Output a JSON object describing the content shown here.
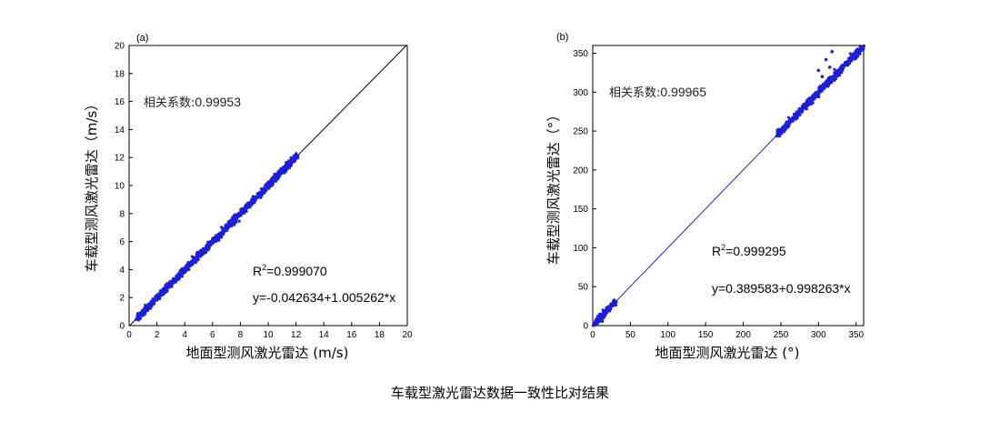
{
  "caption": "车载型激光雷达数据一致性比对结果",
  "chart_data": [
    {
      "type": "scatter",
      "panel_label": "(a)",
      "xlabel": "地面型测风激光雷达 (m/s)",
      "ylabel": "车载型测风激光雷达（m/s）",
      "xlim": [
        0,
        20
      ],
      "ylim": [
        0,
        20
      ],
      "xticks": [
        "0",
        "2",
        "4",
        "6",
        "8",
        "10",
        "12",
        "14",
        "16",
        "18",
        "20"
      ],
      "yticks": [
        "0",
        "2",
        "4",
        "6",
        "8",
        "10",
        "12",
        "14",
        "16",
        "18",
        "20"
      ],
      "correlation_label": "相关系数:",
      "correlation_value": "0.99953",
      "r2_prefix": "R",
      "r2_sup": "2",
      "r2_value": "=0.999070",
      "equation": "y=-0.042634+1.005262*x",
      "fit": {
        "intercept": -0.042634,
        "slope": 1.005262,
        "x_range": [
          0,
          20
        ],
        "color": "#000000"
      },
      "scatter_range": [
        0.6,
        12.1
      ],
      "point_color": "#1f1fd6"
    },
    {
      "type": "scatter",
      "panel_label": "(b)",
      "xlabel": "地面型测风激光雷达 (°)",
      "ylabel": "车载型测风激光雷达（°）",
      "xlim": [
        0,
        360
      ],
      "ylim": [
        0,
        360
      ],
      "xticks": [
        "0",
        "50",
        "100",
        "150",
        "200",
        "250",
        "300",
        "350"
      ],
      "yticks": [
        "0",
        "50",
        "100",
        "150",
        "200",
        "250",
        "300",
        "350"
      ],
      "correlation_label": "相关系数:",
      "correlation_value": "0.99965",
      "r2_prefix": "R",
      "r2_sup": "2",
      "r2_value": "=0.999295",
      "equation": "y=0.389583+0.998263*x",
      "fit": {
        "intercept": 0.389583,
        "slope": 0.998263,
        "x_range": [
          0,
          360
        ],
        "color": "#1f1fd6"
      },
      "scatter_segments": [
        [
          0,
          30
        ],
        [
          245,
          360
        ]
      ],
      "outliers": [
        [
          305,
          320
        ],
        [
          315,
          332
        ],
        [
          318,
          352
        ],
        [
          310,
          342
        ],
        [
          300,
          328
        ]
      ],
      "point_color": "#1f1fd6"
    }
  ]
}
